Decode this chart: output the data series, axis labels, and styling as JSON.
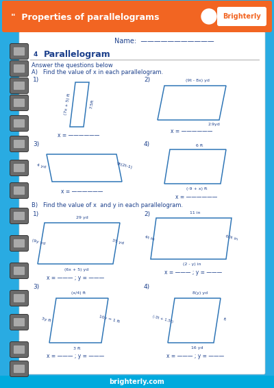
{
  "header_bg": "#F26522",
  "page_bg": "#29ABE2",
  "paper_bg": "#FFFFFF",
  "footer_bg": "#00AADD",
  "blue_dark": "#1B3F8B",
  "blue_mid": "#2E75B6",
  "orange": "#F26522",
  "title": "\"  Properties of parallelograms",
  "brand": "Brighterly",
  "footer": "brighterly.com",
  "name_label": "Name:  ———————————",
  "section_num": "4",
  "section_title": "Parallelogram",
  "subtitle": "Answer the questions below",
  "part_a": "A)   Find the value of x in each parallelogram.",
  "part_b": "B)   Find the value of x  and y in each parallelogram."
}
